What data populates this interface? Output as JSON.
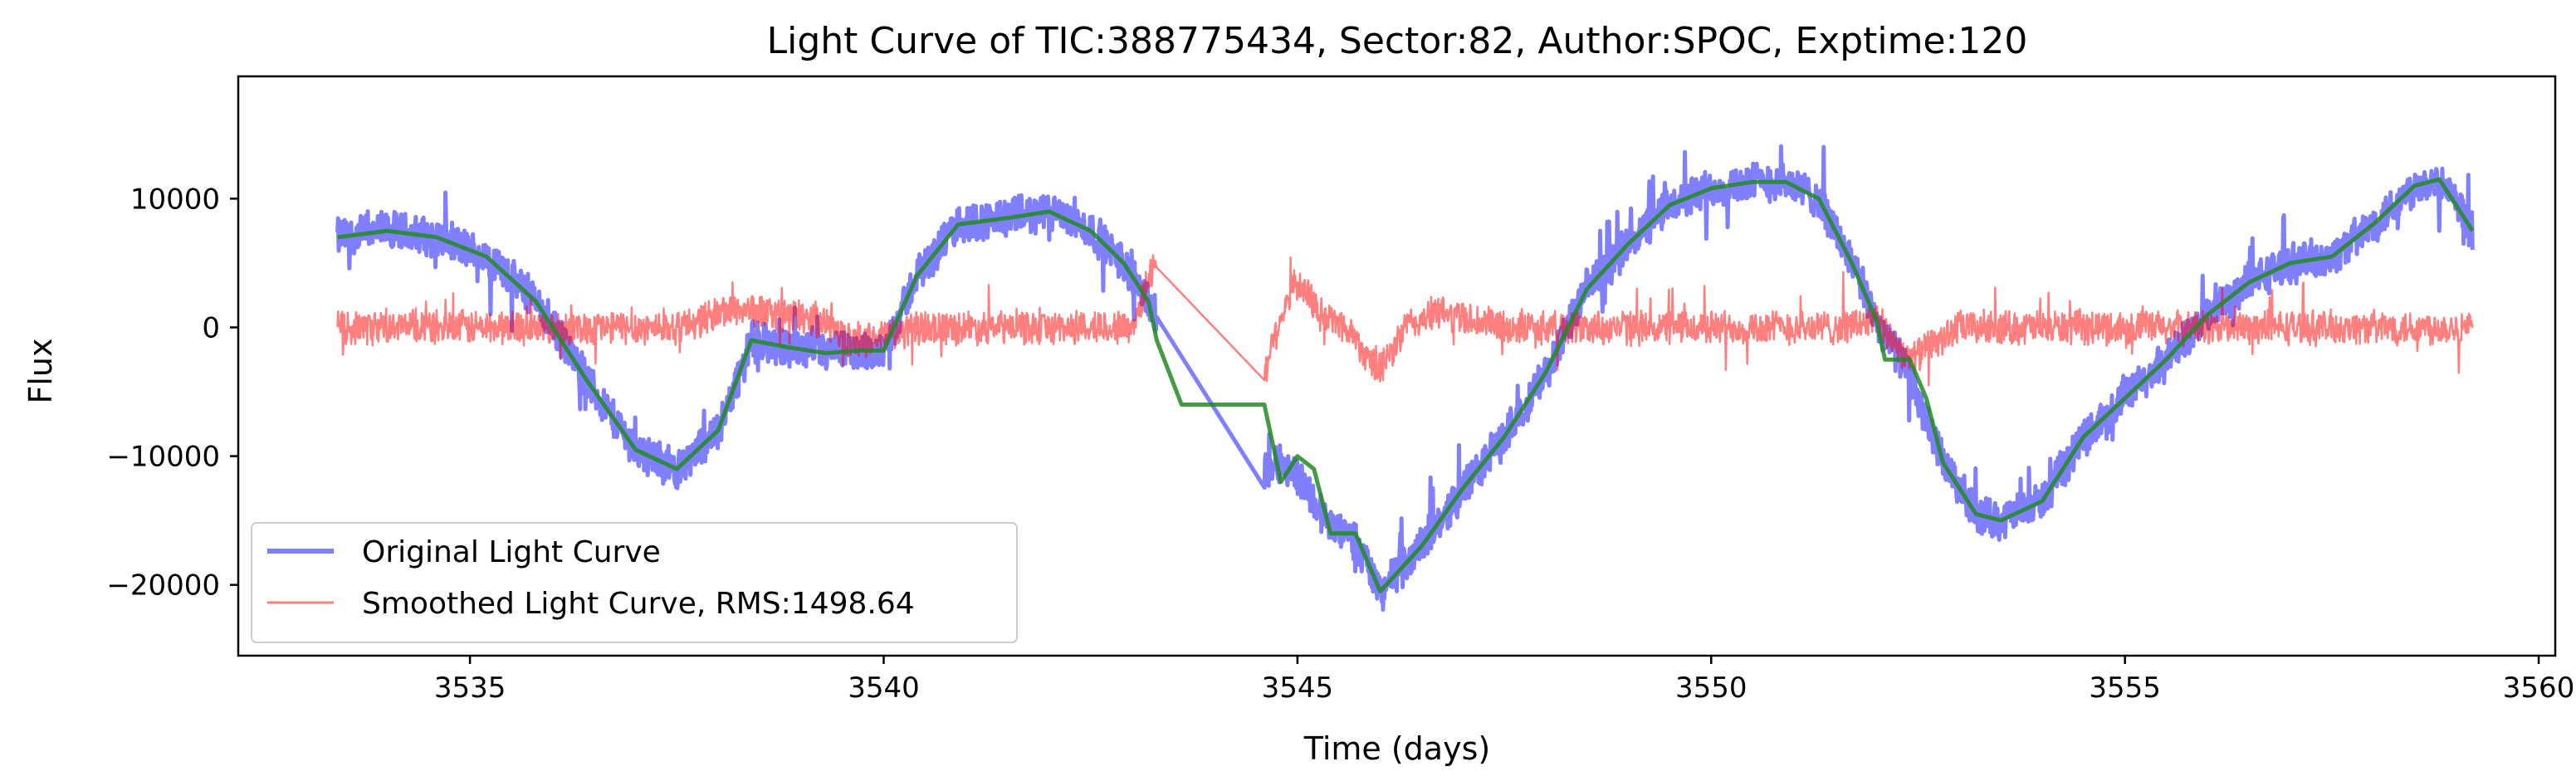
{
  "chart_data": {
    "type": "line",
    "title": "Light Curve of TIC:388775434, Sector:82, Author:SPOC, Exptime:120",
    "xlabel": "Time (days)",
    "ylabel": "Flux",
    "xlim": [
      3532.2,
      3560.2
    ],
    "ylim": [
      -25500,
      19500
    ],
    "xticks": [
      3535,
      3540,
      3545,
      3550,
      3555,
      3560
    ],
    "yticks": [
      -20000,
      -10000,
      0,
      10000
    ],
    "ytick_labels": [
      "−20000",
      "−10000",
      "0",
      "10000"
    ],
    "grid": false,
    "legend_position": "lower-left",
    "gap": [
      3543.3,
      3544.6
    ],
    "series": [
      {
        "name": "Original Light Curve",
        "color": "#0000ff",
        "opacity": 0.5,
        "noise_amp": 1700,
        "x": [
          3533.4,
          3534.0,
          3534.6,
          3535.2,
          3535.8,
          3536.4,
          3537.0,
          3537.5,
          3538.0,
          3538.4,
          3538.8,
          3539.3,
          3539.7,
          3540.0,
          3540.4,
          3540.9,
          3541.5,
          3542.0,
          3542.5,
          3542.9,
          3543.2,
          3543.3,
          3544.6,
          3544.8,
          3545.0,
          3545.4,
          3545.7,
          3546.0,
          3546.5,
          3547.0,
          3547.5,
          3548.0,
          3548.5,
          3549.0,
          3549.5,
          3550.0,
          3550.5,
          3550.9,
          3551.3,
          3551.7,
          3552.0,
          3552.3,
          3552.5,
          3552.8,
          3553.2,
          3553.5,
          3554.0,
          3554.5,
          3555.0,
          3555.5,
          3556.0,
          3556.5,
          3557.0,
          3557.5,
          3558.0,
          3558.5,
          3558.8,
          3559.2
        ],
        "y": [
          7000,
          7500,
          7000,
          5500,
          2000,
          -4000,
          -9500,
          -11000,
          -8000,
          -1000,
          -1500,
          -2000,
          -1800,
          -1800,
          4000,
          8000,
          8500,
          9000,
          7500,
          5000,
          2000,
          500,
          -11000,
          -10500,
          -11500,
          -15500,
          -16500,
          -20500,
          -17000,
          -12500,
          -8500,
          -3500,
          3000,
          6500,
          9500,
          10800,
          11300,
          11300,
          10000,
          5000,
          500,
          -2500,
          -5500,
          -10500,
          -14500,
          -15000,
          -13500,
          -8500,
          -5500,
          -2500,
          1000,
          3500,
          5000,
          5500,
          8000,
          11000,
          11500,
          7500
        ]
      },
      {
        "name": "Smoothed Light Curve, RMS:1498.64",
        "color": "#ff0000",
        "opacity": 0.5,
        "noise_amp": 1500,
        "x": [
          3533.4,
          3534.5,
          3535.5,
          3536.5,
          3537.5,
          3538.2,
          3538.8,
          3539.3,
          3539.6,
          3540.5,
          3541.5,
          3542.5,
          3543.0,
          3543.3,
          3544.6,
          3544.8,
          3545.0,
          3545.3,
          3545.6,
          3546.0,
          3546.3,
          3546.7,
          3547.5,
          3548.5,
          3549.5,
          3550.5,
          3551.5,
          3552.0,
          3552.4,
          3553.0,
          3554.0,
          3555.0,
          3556.0,
          3557.0,
          3558.0,
          3559.2
        ],
        "y": [
          0,
          0,
          0,
          0,
          0,
          1500,
          1000,
          500,
          -1200,
          0,
          0,
          0,
          0,
          5500,
          -3500,
          1000,
          3500,
          1000,
          0,
          -3500,
          0,
          1200,
          0,
          0,
          0,
          0,
          0,
          500,
          -2500,
          0,
          0,
          0,
          0,
          0,
          0,
          0
        ]
      },
      {
        "name": "",
        "color": "#228b22",
        "opacity": 0.85,
        "noise_amp": 0,
        "x": [
          3533.4,
          3534.0,
          3534.6,
          3535.2,
          3535.8,
          3536.4,
          3537.0,
          3537.5,
          3538.0,
          3538.4,
          3538.8,
          3539.3,
          3539.7,
          3540.0,
          3540.4,
          3540.9,
          3541.5,
          3542.0,
          3542.5,
          3542.9,
          3543.2,
          3543.3,
          3543.6,
          3544.6,
          3544.8,
          3545.0,
          3545.2,
          3545.4,
          3545.7,
          3546.0,
          3546.5,
          3547.0,
          3547.5,
          3548.0,
          3548.5,
          3549.0,
          3549.5,
          3550.0,
          3550.5,
          3550.9,
          3551.3,
          3551.7,
          3552.0,
          3552.1,
          3552.4,
          3552.6,
          3552.8,
          3553.2,
          3553.5,
          3554.0,
          3554.5,
          3555.0,
          3555.5,
          3556.0,
          3556.5,
          3557.0,
          3557.5,
          3558.0,
          3558.5,
          3558.8,
          3559.2
        ],
        "y": [
          7000,
          7500,
          7000,
          5500,
          2000,
          -4000,
          -9500,
          -11000,
          -8000,
          -1000,
          -1500,
          -2000,
          -1800,
          -1800,
          4000,
          8000,
          8500,
          9000,
          7500,
          5000,
          2000,
          -1000,
          -6000,
          -6000,
          -12000,
          -10000,
          -11000,
          -16000,
          -16000,
          -20500,
          -17000,
          -12500,
          -8500,
          -3500,
          3000,
          6500,
          9500,
          10800,
          11300,
          11300,
          10000,
          5000,
          500,
          -2500,
          -2500,
          -5500,
          -10500,
          -14500,
          -15000,
          -13500,
          -8500,
          -5500,
          -2500,
          1000,
          3500,
          5000,
          5500,
          8000,
          11000,
          11500,
          7500
        ]
      }
    ]
  }
}
